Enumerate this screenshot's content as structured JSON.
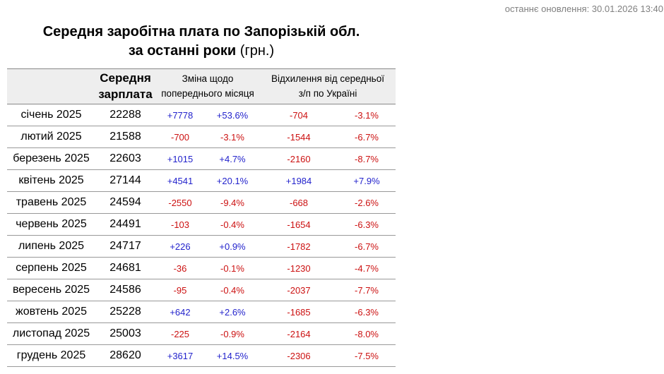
{
  "header": {
    "last_update": "останнє оновлення: 30.01.2026 13:40"
  },
  "title": {
    "line1": "Середня заробітна плата по Запорізькій обл.",
    "line2_bold": "за останні роки",
    "line2_suffix": " (грн.)"
  },
  "colors": {
    "positive": "#2323cc",
    "negative": "#cc1111",
    "header_bg": "#eeeeee",
    "row_border": "#999999",
    "muted_text": "#808080"
  },
  "chart_data": {
    "type": "table",
    "title": "Середня заробітна плата по Запорізькій обл. за останні роки (грн.)",
    "column_headers": {
      "month": "",
      "salary": "Середня зарплата",
      "change": "Зміна щодо попереднього місяця",
      "deviation": "Відхилення від середньої з/п по Україні"
    },
    "rows": [
      {
        "month": "січень 2025",
        "salary": "22288",
        "change_abs": "+7778",
        "change_pct": "+53.6%",
        "dev_abs": "-704",
        "dev_pct": "-3.1%"
      },
      {
        "month": "лютий 2025",
        "salary": "21588",
        "change_abs": "-700",
        "change_pct": "-3.1%",
        "dev_abs": "-1544",
        "dev_pct": "-6.7%"
      },
      {
        "month": "березень 2025",
        "salary": "22603",
        "change_abs": "+1015",
        "change_pct": "+4.7%",
        "dev_abs": "-2160",
        "dev_pct": "-8.7%"
      },
      {
        "month": "квітень 2025",
        "salary": "27144",
        "change_abs": "+4541",
        "change_pct": "+20.1%",
        "dev_abs": "+1984",
        "dev_pct": "+7.9%"
      },
      {
        "month": "травень 2025",
        "salary": "24594",
        "change_abs": "-2550",
        "change_pct": "-9.4%",
        "dev_abs": "-668",
        "dev_pct": "-2.6%"
      },
      {
        "month": "червень 2025",
        "salary": "24491",
        "change_abs": "-103",
        "change_pct": "-0.4%",
        "dev_abs": "-1654",
        "dev_pct": "-6.3%"
      },
      {
        "month": "липень 2025",
        "salary": "24717",
        "change_abs": "+226",
        "change_pct": "+0.9%",
        "dev_abs": "-1782",
        "dev_pct": "-6.7%"
      },
      {
        "month": "серпень 2025",
        "salary": "24681",
        "change_abs": "-36",
        "change_pct": "-0.1%",
        "dev_abs": "-1230",
        "dev_pct": "-4.7%"
      },
      {
        "month": "вересень 2025",
        "salary": "24586",
        "change_abs": "-95",
        "change_pct": "-0.4%",
        "dev_abs": "-2037",
        "dev_pct": "-7.7%"
      },
      {
        "month": "жовтень 2025",
        "salary": "25228",
        "change_abs": "+642",
        "change_pct": "+2.6%",
        "dev_abs": "-1685",
        "dev_pct": "-6.3%"
      },
      {
        "month": "листопад 2025",
        "salary": "25003",
        "change_abs": "-225",
        "change_pct": "-0.9%",
        "dev_abs": "-2164",
        "dev_pct": "-8.0%"
      },
      {
        "month": "грудень 2025",
        "salary": "28620",
        "change_abs": "+3617",
        "change_pct": "+14.5%",
        "dev_abs": "-2306",
        "dev_pct": "-7.5%"
      }
    ]
  }
}
